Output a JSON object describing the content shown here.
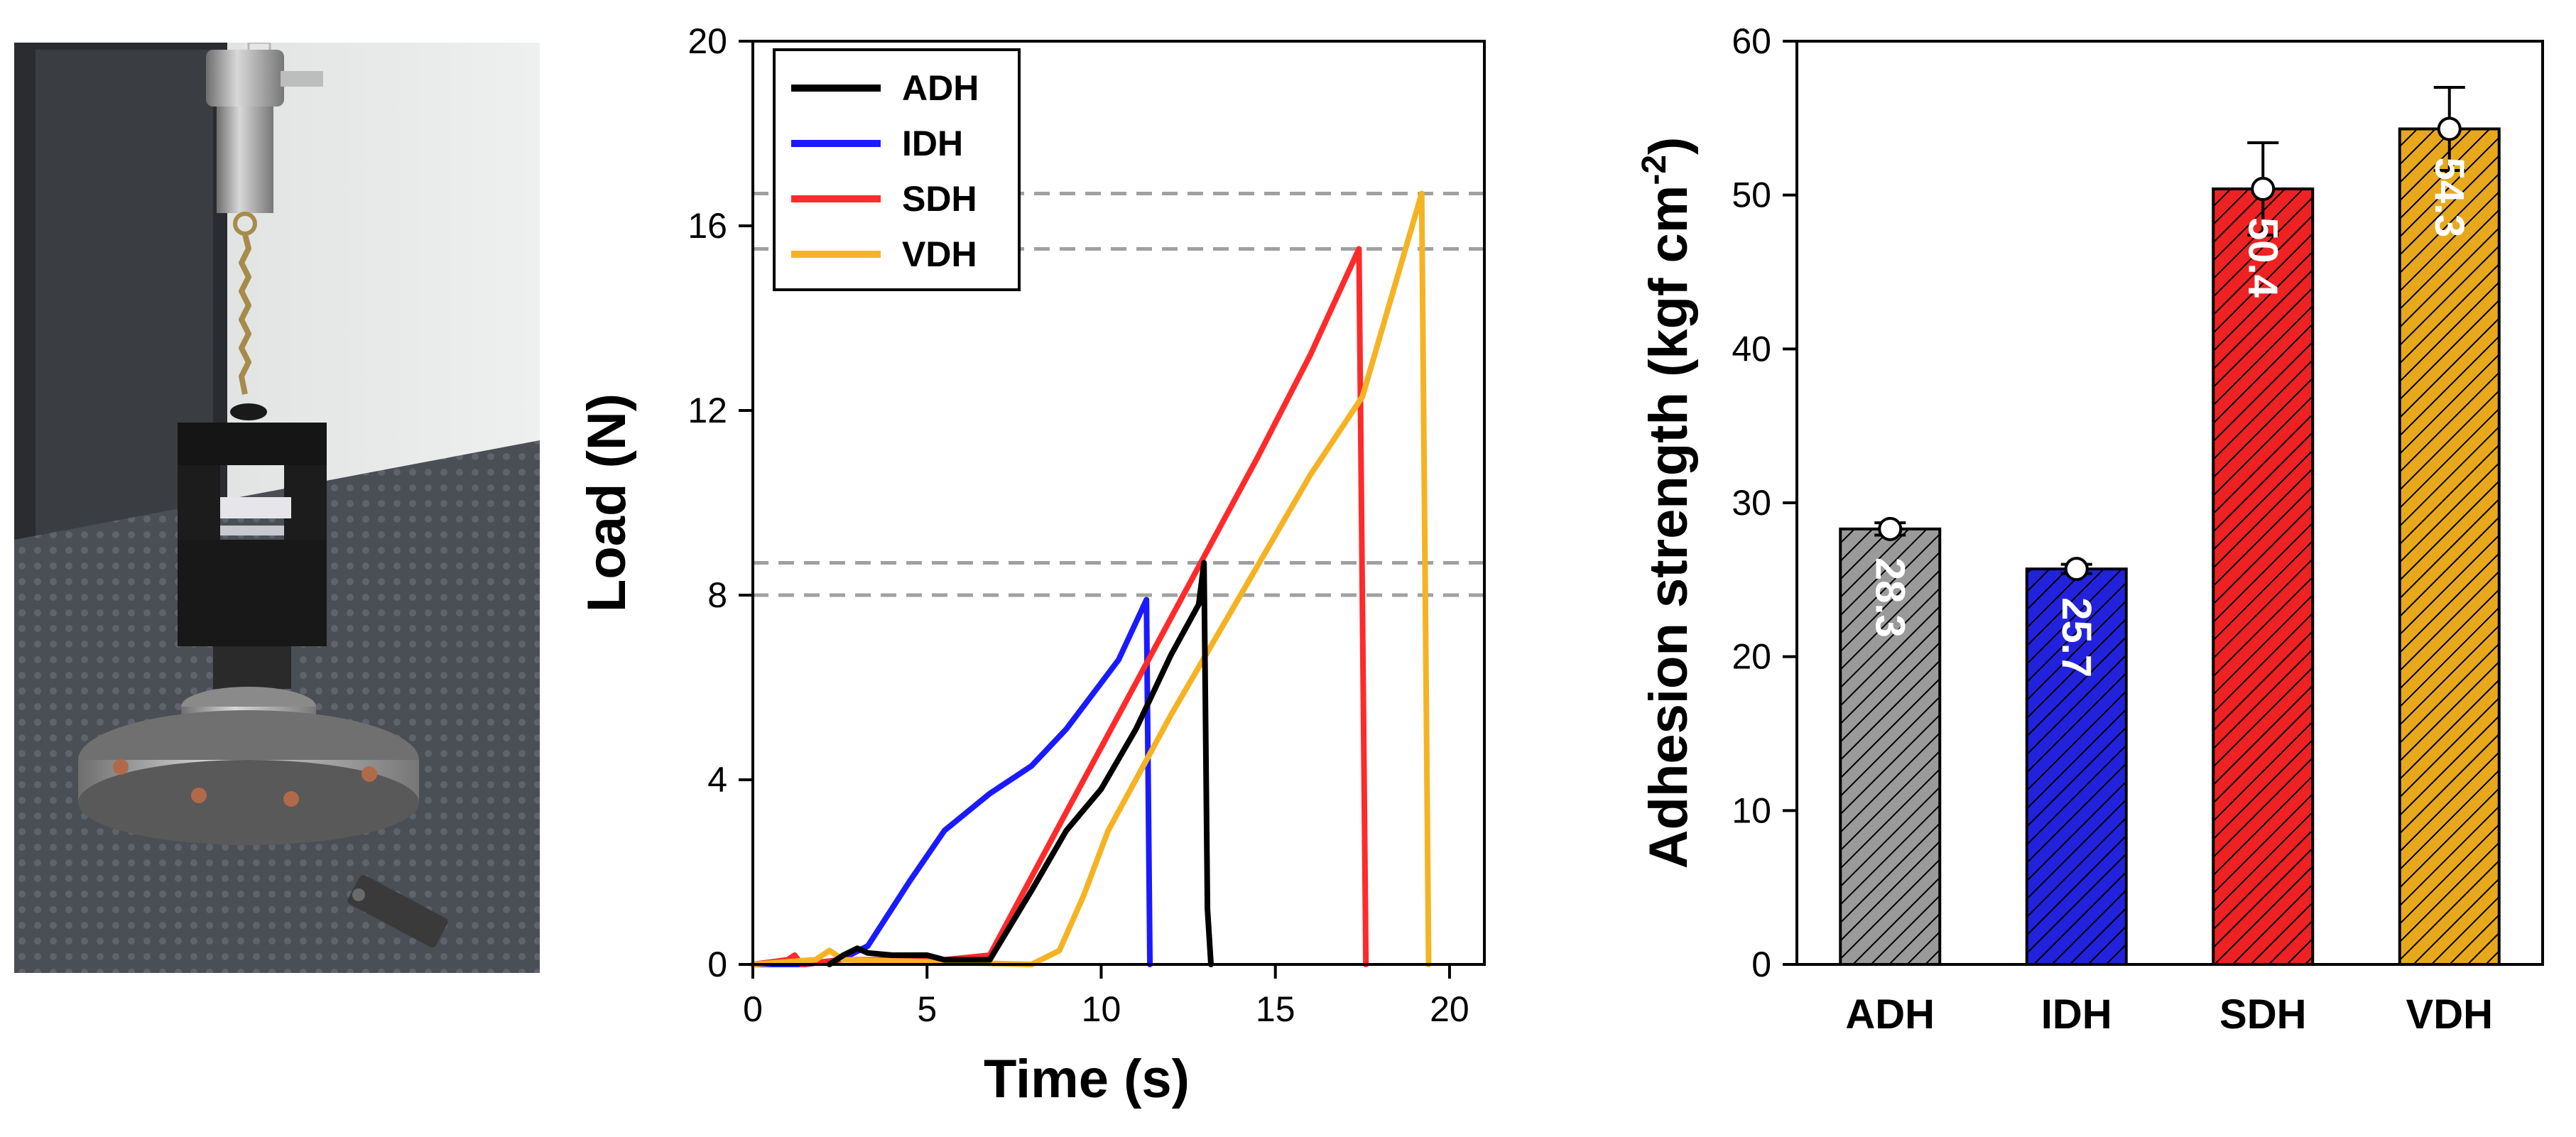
{
  "colors": {
    "ADH": "#000000",
    "IDH": "#1a1aff",
    "SDH": "#ff2a2a",
    "VDH": "#f5b324",
    "ref_line": "#a0a0a0",
    "bar_ADH": "#9a9a9a",
    "bar_IDH": "#2222dd",
    "bar_SDH": "#ee2222",
    "bar_VDH": "#e8a81c"
  },
  "chart_data": [
    {
      "type": "line",
      "title": "",
      "xlabel": "Time (s)",
      "ylabel": "Load (N)",
      "xlim": [
        0,
        21
      ],
      "ylim": [
        0,
        20
      ],
      "xticks": [
        0,
        5,
        10,
        15,
        20
      ],
      "yticks": [
        0,
        4,
        8,
        12,
        16,
        20
      ],
      "legend_position": "top-left",
      "reference_lines": [
        8.0,
        8.7,
        15.5,
        16.7
      ],
      "series": [
        {
          "name": "IDH",
          "color_key": "IDH",
          "points": [
            [
              0,
              0
            ],
            [
              1.5,
              0
            ],
            [
              2.5,
              0.1
            ],
            [
              3.3,
              0.4
            ],
            [
              4.5,
              1.8
            ],
            [
              5.5,
              2.9
            ],
            [
              6.8,
              3.7
            ],
            [
              8,
              4.3
            ],
            [
              9,
              5.1
            ],
            [
              10,
              6.1
            ],
            [
              10.5,
              6.6
            ],
            [
              11.3,
              7.9
            ],
            [
              11.4,
              0
            ]
          ]
        },
        {
          "name": "SDH",
          "color_key": "SDH",
          "points": [
            [
              0,
              0
            ],
            [
              1,
              0.1
            ],
            [
              1.2,
              0.2
            ],
            [
              1.4,
              0
            ],
            [
              2.5,
              0.1
            ],
            [
              4,
              0.1
            ],
            [
              5.5,
              0.1
            ],
            [
              6.8,
              0.2
            ],
            [
              9,
              3.3
            ],
            [
              11,
              6.1
            ],
            [
              13,
              8.9
            ],
            [
              14.5,
              11.0
            ],
            [
              16,
              13.2
            ],
            [
              17.4,
              15.5
            ],
            [
              17.6,
              0
            ]
          ]
        },
        {
          "name": "VDH",
          "color_key": "VDH",
          "points": [
            [
              0,
              0
            ],
            [
              1.8,
              0.1
            ],
            [
              2.2,
              0.3
            ],
            [
              2.6,
              0.1
            ],
            [
              8,
              0
            ],
            [
              8.8,
              0.3
            ],
            [
              9.5,
              1.5
            ],
            [
              10.2,
              2.9
            ],
            [
              12,
              5.4
            ],
            [
              14,
              8.0
            ],
            [
              16,
              10.6
            ],
            [
              17.5,
              12.3
            ],
            [
              19.2,
              16.7
            ],
            [
              19.4,
              0
            ]
          ]
        },
        {
          "name": "ADH",
          "color_key": "ADH",
          "points": [
            [
              2.2,
              0
            ],
            [
              2.6,
              0.2
            ],
            [
              3.0,
              0.35
            ],
            [
              3.3,
              0.25
            ],
            [
              4.0,
              0.2
            ],
            [
              5.0,
              0.2
            ],
            [
              5.5,
              0.1
            ],
            [
              6.8,
              0.1
            ],
            [
              8,
              1.6
            ],
            [
              9,
              2.9
            ],
            [
              10,
              3.8
            ],
            [
              11,
              5.1
            ],
            [
              12,
              6.7
            ],
            [
              12.8,
              7.8
            ],
            [
              12.95,
              8.7
            ],
            [
              13.05,
              1.2
            ],
            [
              13.15,
              0
            ]
          ]
        }
      ]
    },
    {
      "type": "bar",
      "title": "",
      "xlabel": "",
      "ylabel_main": "Adhesion strength (kgf cm",
      "ylabel_sup": "-2",
      "ylabel_close": ")",
      "ylim": [
        0,
        60
      ],
      "yticks": [
        0,
        10,
        20,
        30,
        40,
        50,
        60
      ],
      "categories": [
        "ADH",
        "IDH",
        "SDH",
        "VDH"
      ],
      "values": [
        28.3,
        25.7,
        50.4,
        54.3
      ],
      "value_labels": [
        "28.3",
        "25.7",
        "50.4",
        "54.3"
      ],
      "errors": [
        0.4,
        0.3,
        3.0,
        2.7
      ],
      "color_keys": [
        "bar_ADH",
        "bar_IDH",
        "bar_SDH",
        "bar_VDH"
      ]
    }
  ]
}
